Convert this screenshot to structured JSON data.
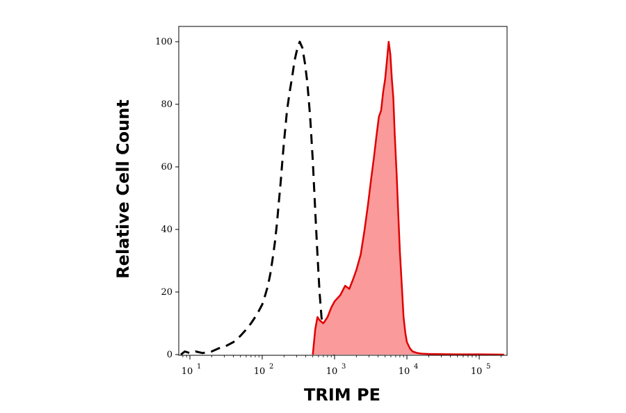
{
  "chart_data": {
    "type": "area",
    "xlabel": "TRIM PE",
    "ylabel": "Relative Cell Count",
    "xscale": "log",
    "xlim": [
      7,
      220000
    ],
    "ylim": [
      0,
      100
    ],
    "grid": false,
    "x_ticks": [
      {
        "value": 10,
        "base": "10",
        "exp": "1"
      },
      {
        "value": 100,
        "base": "10",
        "exp": "2"
      },
      {
        "value": 1000,
        "base": "10",
        "exp": "3"
      },
      {
        "value": 10000,
        "base": "10",
        "exp": "4"
      },
      {
        "value": 100000,
        "base": "10",
        "exp": "5"
      }
    ],
    "y_ticks": [
      "0",
      "20",
      "40",
      "60",
      "80",
      "100"
    ],
    "series": [
      {
        "style": "dashed",
        "color": "#000000",
        "fill": "none",
        "points": [
          [
            7.5,
            0
          ],
          [
            8.5,
            1
          ],
          [
            10,
            0.5
          ],
          [
            12,
            1
          ],
          [
            15,
            0.5
          ],
          [
            20,
            1
          ],
          [
            25,
            2
          ],
          [
            30,
            2.5
          ],
          [
            40,
            4
          ],
          [
            50,
            6
          ],
          [
            60,
            8
          ],
          [
            70,
            10
          ],
          [
            80,
            12
          ],
          [
            90,
            14
          ],
          [
            100,
            16
          ],
          [
            110,
            19
          ],
          [
            120,
            22
          ],
          [
            130,
            26
          ],
          [
            140,
            31
          ],
          [
            150,
            36
          ],
          [
            160,
            42
          ],
          [
            170,
            49
          ],
          [
            180,
            55
          ],
          [
            190,
            62
          ],
          [
            200,
            68
          ],
          [
            210,
            73
          ],
          [
            220,
            78
          ],
          [
            240,
            84
          ],
          [
            260,
            89
          ],
          [
            280,
            94
          ],
          [
            300,
            97
          ],
          [
            330,
            100
          ],
          [
            360,
            98
          ],
          [
            390,
            93
          ],
          [
            420,
            87
          ],
          [
            460,
            76
          ],
          [
            500,
            62
          ],
          [
            540,
            46
          ],
          [
            580,
            32
          ],
          [
            620,
            20
          ],
          [
            660,
            12
          ],
          [
            700,
            7
          ],
          [
            750,
            4
          ],
          [
            800,
            2
          ],
          [
            900,
            0.5
          ],
          [
            1000,
            0
          ]
        ]
      },
      {
        "style": "solid",
        "color": "#e00000",
        "fill": "#fa9a9a",
        "points": [
          [
            500,
            0
          ],
          [
            540,
            8
          ],
          [
            580,
            12
          ],
          [
            620,
            11
          ],
          [
            700,
            10
          ],
          [
            800,
            12
          ],
          [
            900,
            15
          ],
          [
            1000,
            17
          ],
          [
            1200,
            19
          ],
          [
            1400,
            22
          ],
          [
            1600,
            21
          ],
          [
            1800,
            24
          ],
          [
            2000,
            27
          ],
          [
            2300,
            32
          ],
          [
            2600,
            40
          ],
          [
            2900,
            48
          ],
          [
            3200,
            56
          ],
          [
            3500,
            63
          ],
          [
            3800,
            70
          ],
          [
            4100,
            76
          ],
          [
            4400,
            78
          ],
          [
            4700,
            84
          ],
          [
            5000,
            88
          ],
          [
            5300,
            94
          ],
          [
            5600,
            100
          ],
          [
            5900,
            96
          ],
          [
            6200,
            88
          ],
          [
            6500,
            82
          ],
          [
            6800,
            70
          ],
          [
            7200,
            58
          ],
          [
            7600,
            45
          ],
          [
            8000,
            33
          ],
          [
            8500,
            22
          ],
          [
            9000,
            12
          ],
          [
            9500,
            7
          ],
          [
            10000,
            4
          ],
          [
            11000,
            2
          ],
          [
            12000,
            1
          ],
          [
            14000,
            0.5
          ],
          [
            16000,
            0.3
          ],
          [
            20000,
            0.2
          ],
          [
            50000,
            0.1
          ],
          [
            100000,
            0.1
          ],
          [
            220000,
            0
          ]
        ]
      }
    ]
  }
}
